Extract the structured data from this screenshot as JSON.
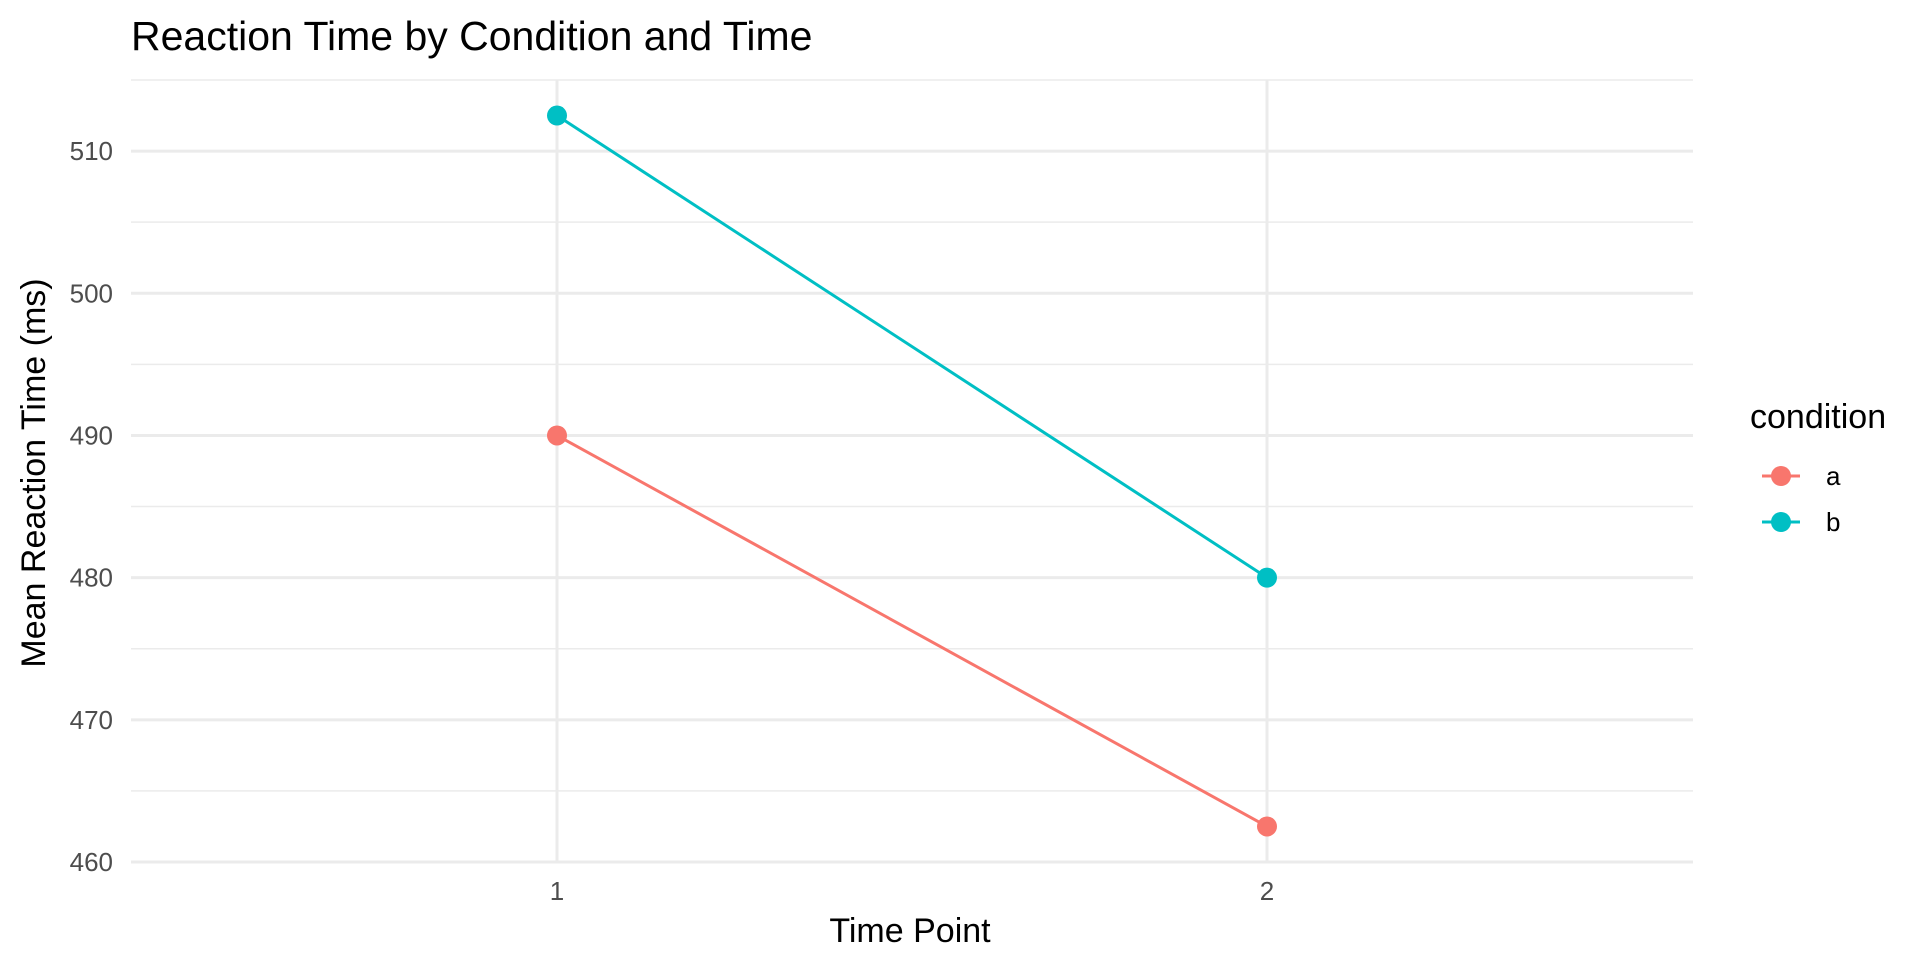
{
  "chart_data": {
    "type": "line",
    "title": "Reaction Time by Condition and Time",
    "xlabel": "Time Point",
    "ylabel": "Mean Reaction Time (ms)",
    "x": [
      1,
      2
    ],
    "x_tick_labels": [
      "1",
      "2"
    ],
    "xlim": [
      0.4,
      2.6
    ],
    "ylim": [
      460,
      515
    ],
    "y_ticks": [
      460,
      470,
      480,
      490,
      500,
      510
    ],
    "y_tick_labels": [
      "460",
      "470",
      "480",
      "490",
      "500",
      "510"
    ],
    "grid": true,
    "legend": {
      "title": "condition",
      "placement": "right"
    },
    "series": [
      {
        "name": "a",
        "color": "#F8766D",
        "values": [
          490,
          462.5
        ]
      },
      {
        "name": "b",
        "color": "#00BFC4",
        "values": [
          512.5,
          480
        ]
      }
    ]
  }
}
